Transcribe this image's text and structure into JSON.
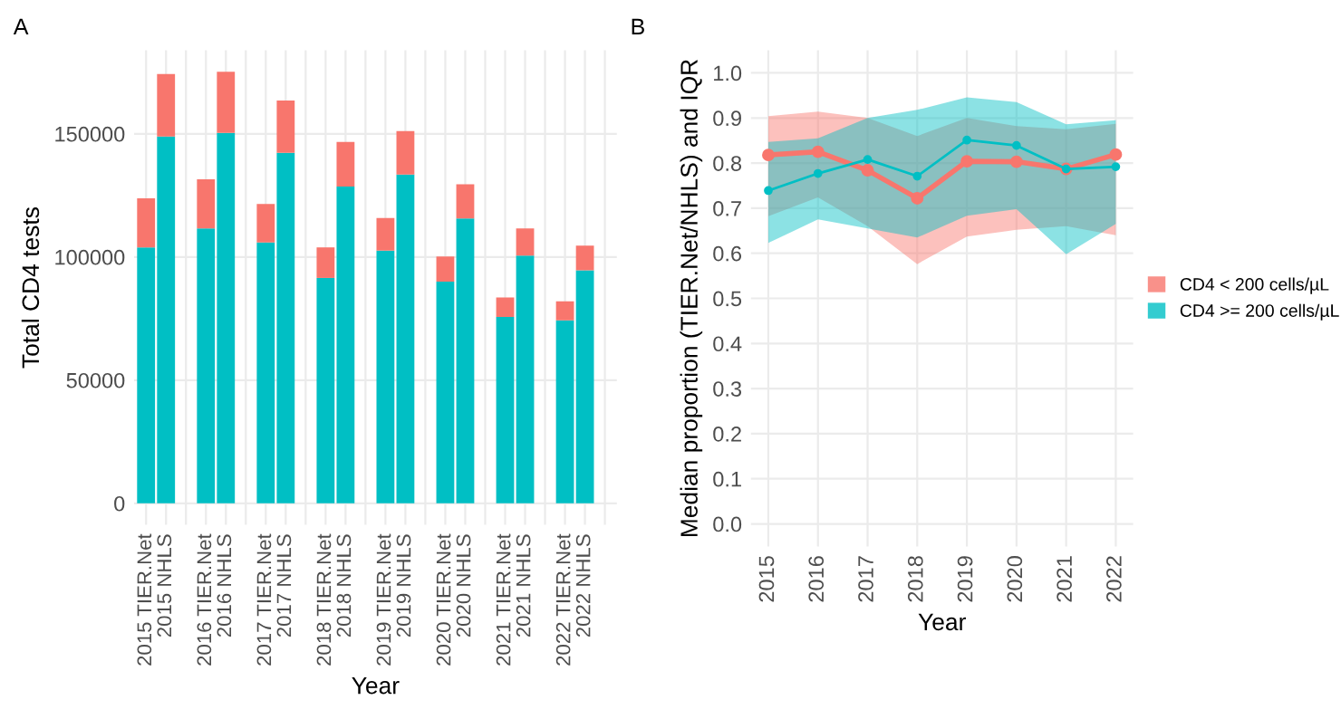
{
  "chart_data": [
    {
      "type": "bar",
      "title": "A",
      "xlabel": "Year",
      "ylabel": "Total CD4 tests",
      "stacked": true,
      "grid": true,
      "categories": [
        "2015 TIER.Net",
        "2015 NHLS",
        null,
        "2016 TIER.Net",
        "2016 NHLS",
        null,
        "2017 TIER.Net",
        "2017 NHLS",
        null,
        "2018 TIER.Net",
        "2018 NHLS",
        null,
        "2019 TIER.Net",
        "2019 NHLS",
        null,
        "2020 TIER.Net",
        "2020 NHLS",
        null,
        "2021 TIER.Net",
        "2021 NHLS",
        null,
        "2022 TIER.Net",
        "2022 NHLS",
        null
      ],
      "series": [
        {
          "color": "#00bfc4",
          "values": [
            103900,
            148900,
            null,
            111600,
            150400,
            null,
            105900,
            142300,
            null,
            91500,
            128600,
            null,
            102600,
            133500,
            null,
            90000,
            115600,
            null,
            75700,
            100600,
            null,
            74300,
            94600,
            null
          ]
        },
        {
          "color": "#f8766d",
          "values": [
            19900,
            25400,
            null,
            19900,
            24800,
            null,
            15600,
            21200,
            null,
            12400,
            18100,
            null,
            13200,
            17600,
            null,
            10200,
            13900,
            null,
            7900,
            11000,
            null,
            7700,
            10000,
            null
          ]
        }
      ],
      "ylim": [
        -8750,
        183900
      ],
      "yticks": [
        0,
        50000,
        100000,
        150000
      ]
    },
    {
      "type": "line",
      "title": "B",
      "xlabel": "Year",
      "ylabel": "Median proportion (TIER.Net/NHLS) and IQR",
      "grid": true,
      "marker": "circle",
      "legend": "right",
      "x": [
        2015,
        2016,
        2017,
        2018,
        2019,
        2020,
        2021,
        2022
      ],
      "series": [
        {
          "name": "CD4 < 200 cells/µL",
          "color": "#f8766d",
          "values": [
            0.818,
            0.825,
            0.784,
            0.722,
            0.804,
            0.803,
            0.787,
            0.819
          ],
          "lower": [
            0.682,
            0.724,
            0.66,
            0.576,
            0.637,
            0.652,
            0.66,
            0.64
          ],
          "upper": [
            0.904,
            0.914,
            0.9,
            0.86,
            0.9,
            0.882,
            0.875,
            0.887
          ]
        },
        {
          "name": "CD4 >= 200 cells/µL",
          "color": "#00bfc4",
          "values": [
            0.739,
            0.777,
            0.808,
            0.771,
            0.851,
            0.839,
            0.787,
            0.792
          ],
          "lower": [
            0.623,
            0.675,
            0.655,
            0.635,
            0.683,
            0.698,
            0.598,
            0.665
          ],
          "upper": [
            0.847,
            0.855,
            0.9,
            0.918,
            0.946,
            0.935,
            0.886,
            0.895
          ]
        }
      ],
      "xlim": [
        2014.65,
        2022.35
      ],
      "xticks": [
        2015,
        2016,
        2017,
        2018,
        2019,
        2020,
        2021,
        2022
      ],
      "ylim": [
        -0.05,
        1.05
      ],
      "yticks": [
        {
          "value": 0,
          "label": "0.0"
        },
        0.1,
        0.2,
        0.3,
        0.4,
        0.5,
        0.6,
        0.7,
        0.8,
        0.9,
        {
          "value": 1,
          "label": "1.0"
        }
      ]
    }
  ]
}
